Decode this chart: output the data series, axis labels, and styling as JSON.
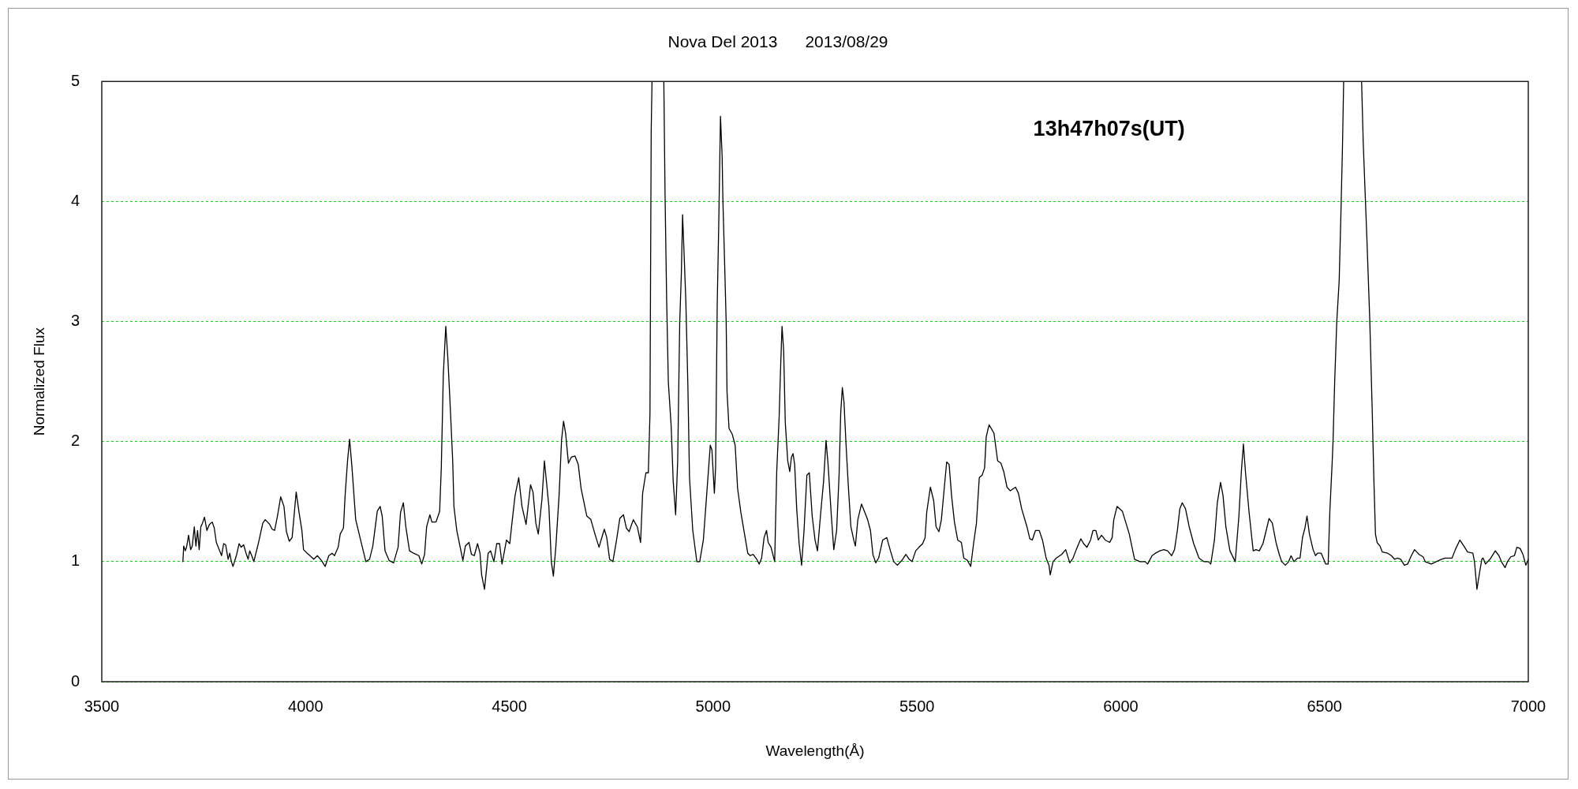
{
  "chart_data": {
    "type": "line",
    "title": "Nova Del 2013      2013/08/29",
    "xlabel": "Wavelength(Å)",
    "ylabel": "Normalized Flux",
    "annotations": [
      "13h47h07s(UT)"
    ],
    "xlim": [
      3500,
      7000
    ],
    "xticks": [
      3500,
      4000,
      4500,
      5000,
      5500,
      6000,
      6500,
      7000
    ],
    "ylim": [
      0,
      5
    ],
    "yticks": [
      0,
      1,
      2,
      3,
      4,
      5
    ],
    "grid": "y",
    "marker": "none",
    "line_style": "solid",
    "color": "#000000",
    "x": [
      3699,
      3701,
      3705,
      3708,
      3713,
      3718,
      3722,
      3727,
      3731,
      3735,
      3739,
      3743,
      3747,
      3752,
      3758,
      3764,
      3771,
      3776,
      3781,
      3794,
      3799,
      3804,
      3810,
      3814,
      3818,
      3822,
      3831,
      3837,
      3842,
      3848,
      3854,
      3859,
      3863,
      3868,
      3873,
      3884,
      3895,
      3901,
      3912,
      3918,
      3924,
      3931,
      3939,
      3947,
      3953,
      3960,
      3967,
      3977,
      3984,
      3991,
      3995,
      4004,
      4014,
      4020,
      4029,
      4039,
      4048,
      4057,
      4065,
      4071,
      4080,
      4085,
      4093,
      4097,
      4103,
      4108,
      4114,
      4123,
      4135,
      4148,
      4157,
      4165,
      4176,
      4183,
      4188,
      4195,
      4205,
      4216,
      4227,
      4233,
      4240,
      4246,
      4255,
      4265,
      4278,
      4285,
      4292,
      4297,
      4305,
      4310,
      4320,
      4329,
      4333,
      4338,
      4344,
      4349,
      4354,
      4361,
      4364,
      4371,
      4386,
      4392,
      4401,
      4407,
      4414,
      4422,
      4428,
      4432,
      4439,
      4448,
      4454,
      4462,
      4469,
      4476,
      4482,
      4493,
      4501,
      4506,
      4514,
      4523,
      4531,
      4541,
      4552,
      4558,
      4565,
      4571,
      4580,
      4586,
      4597,
      4603,
      4608,
      4614,
      4622,
      4628,
      4633,
      4638,
      4645,
      4652,
      4661,
      4669,
      4676,
      4690,
      4700,
      4710,
      4720,
      4725,
      4733,
      4739,
      4746,
      4754,
      4763,
      4771,
      4780,
      4787,
      4794,
      4804,
      4814,
      4822,
      4827,
      4835,
      4841,
      4845,
      4848,
      4850,
      4865,
      4879,
      4882,
      4886,
      4890,
      4897,
      4902,
      4908,
      4913,
      4918,
      4922,
      4925,
      4929,
      4933,
      4938,
      4942,
      4950,
      4960,
      4967,
      4976,
      4984,
      4993,
      4997,
      5003,
      5006,
      5010,
      5014,
      5018,
      5022,
      5024,
      5028,
      5032,
      5034,
      5039,
      5047,
      5054,
      5060,
      5068,
      5077,
      5085,
      5091,
      5098,
      5107,
      5113,
      5119,
      5125,
      5131,
      5135,
      5142,
      5151,
      5156,
      5162,
      5165,
      5169,
      5173,
      5177,
      5183,
      5188,
      5192,
      5196,
      5200,
      5205,
      5211,
      5217,
      5223,
      5230,
      5236,
      5243,
      5250,
      5256,
      5264,
      5271,
      5277,
      5282,
      5290,
      5296,
      5303,
      5309,
      5313,
      5317,
      5321,
      5326,
      5332,
      5338,
      5345,
      5349,
      5355,
      5364,
      5371,
      5379,
      5386,
      5392,
      5399,
      5406,
      5416,
      5426,
      5435,
      5443,
      5452,
      5463,
      5473,
      5481,
      5488,
      5497,
      5505,
      5514,
      5520,
      5524,
      5533,
      5541,
      5547,
      5554,
      5560,
      5567,
      5573,
      5579,
      5585,
      5592,
      5600,
      5609,
      5615,
      5624,
      5632,
      5639,
      5646,
      5653,
      5660,
      5666,
      5670,
      5677,
      5689,
      5698,
      5706,
      5713,
      5721,
      5729,
      5742,
      5749,
      5757,
      5770,
      5777,
      5783,
      5791,
      5800,
      5808,
      5817,
      5824,
      5827,
      5834,
      5842,
      5855,
      5865,
      5875,
      5883,
      5891,
      5902,
      5909,
      5917,
      5926,
      5932,
      5939,
      5945,
      5953,
      5962,
      5973,
      5979,
      5983,
      5991,
      6004,
      6013,
      6021,
      6034,
      6047,
      6060,
      6066,
      6077,
      6085,
      6096,
      6106,
      6115,
      6125,
      6132,
      6139,
      6145,
      6151,
      6159,
      6168,
      6179,
      6192,
      6204,
      6215,
      6221,
      6230,
      6237,
      6245,
      6251,
      6258,
      6268,
      6281,
      6290,
      6296,
      6301,
      6306,
      6315,
      6325,
      6332,
      6340,
      6349,
      6357,
      6364,
      6372,
      6381,
      6389,
      6395,
      6404,
      6412,
      6418,
      6425,
      6434,
      6440,
      6446,
      6452,
      6457,
      6463,
      6472,
      6478,
      6483,
      6492,
      6498,
      6503,
      6509,
      6513,
      6519,
      6521,
      6525,
      6530,
      6536,
      6540,
      6544,
      6547,
      6569,
      6591,
      6595,
      6604,
      6611,
      6617,
      6621,
      6625,
      6629,
      6636,
      6642,
      6655,
      6664,
      6672,
      6679,
      6687,
      6696,
      6704,
      6713,
      6721,
      6732,
      6742,
      6747,
      6762,
      6774,
      6787,
      6796,
      6813,
      6821,
      6832,
      6842,
      6851,
      6864,
      6868,
      6874,
      6881,
      6886,
      6889,
      6895,
      6906,
      6919,
      6928,
      6934,
      6943,
      6949,
      6957,
      6966,
      6972,
      6980,
      6987,
      6994,
      7000
    ],
    "values": [
      1.0,
      1.13,
      1.09,
      1.12,
      1.22,
      1.1,
      1.13,
      1.29,
      1.13,
      1.26,
      1.1,
      1.29,
      1.32,
      1.37,
      1.26,
      1.31,
      1.33,
      1.28,
      1.16,
      1.05,
      1.15,
      1.14,
      1.02,
      1.07,
      1.0,
      0.96,
      1.06,
      1.15,
      1.12,
      1.14,
      1.07,
      1.02,
      1.09,
      1.05,
      1.0,
      1.15,
      1.32,
      1.35,
      1.31,
      1.27,
      1.26,
      1.38,
      1.54,
      1.46,
      1.25,
      1.17,
      1.2,
      1.58,
      1.41,
      1.26,
      1.1,
      1.07,
      1.04,
      1.02,
      1.05,
      1.01,
      0.96,
      1.05,
      1.07,
      1.05,
      1.12,
      1.23,
      1.28,
      1.55,
      1.84,
      2.02,
      1.78,
      1.35,
      1.18,
      1.0,
      1.02,
      1.13,
      1.42,
      1.46,
      1.38,
      1.09,
      1.01,
      0.99,
      1.12,
      1.41,
      1.49,
      1.29,
      1.09,
      1.07,
      1.05,
      0.98,
      1.06,
      1.29,
      1.39,
      1.33,
      1.33,
      1.42,
      1.78,
      2.56,
      2.96,
      2.7,
      2.36,
      1.84,
      1.46,
      1.26,
      1.01,
      1.13,
      1.16,
      1.06,
      1.05,
      1.15,
      1.07,
      0.89,
      0.77,
      1.07,
      1.09,
      1.0,
      1.15,
      1.15,
      0.98,
      1.18,
      1.15,
      1.31,
      1.55,
      1.7,
      1.46,
      1.31,
      1.64,
      1.58,
      1.32,
      1.23,
      1.52,
      1.84,
      1.46,
      1.0,
      0.88,
      1.12,
      1.55,
      2.01,
      2.17,
      2.07,
      1.82,
      1.87,
      1.88,
      1.81,
      1.61,
      1.38,
      1.35,
      1.23,
      1.12,
      1.18,
      1.27,
      1.2,
      1.02,
      1.0,
      1.18,
      1.36,
      1.39,
      1.28,
      1.25,
      1.35,
      1.29,
      1.16,
      1.57,
      1.74,
      1.74,
      2.23,
      4.58,
      5,
      null,
      5,
      4.06,
      3.17,
      2.5,
      2.13,
      1.67,
      1.39,
      1.84,
      2.99,
      3.4,
      3.89,
      3.54,
      3.17,
      2.47,
      1.7,
      1.26,
      1.0,
      1.0,
      1.18,
      1.55,
      1.97,
      1.93,
      1.57,
      1.78,
      3.14,
      3.86,
      4.71,
      4.38,
      4.0,
      3.51,
      2.99,
      2.42,
      2.11,
      2.06,
      1.97,
      1.61,
      1.41,
      1.23,
      1.07,
      1.05,
      1.06,
      1.02,
      0.98,
      1.03,
      1.2,
      1.26,
      1.16,
      1.12,
      1.0,
      1.75,
      2.21,
      2.56,
      2.96,
      2.76,
      2.16,
      1.84,
      1.75,
      1.87,
      1.9,
      1.81,
      1.44,
      1.15,
      0.97,
      1.26,
      1.72,
      1.74,
      1.38,
      1.18,
      1.09,
      1.41,
      1.67,
      2.01,
      1.81,
      1.38,
      1.1,
      1.26,
      1.72,
      2.24,
      2.45,
      2.33,
      1.98,
      1.61,
      1.29,
      1.18,
      1.13,
      1.35,
      1.48,
      1.42,
      1.35,
      1.26,
      1.06,
      0.99,
      1.03,
      1.18,
      1.2,
      1.09,
      1.0,
      0.97,
      1.01,
      1.06,
      1.02,
      1.0,
      1.09,
      1.12,
      1.15,
      1.2,
      1.41,
      1.62,
      1.51,
      1.29,
      1.25,
      1.35,
      1.61,
      1.83,
      1.81,
      1.55,
      1.33,
      1.18,
      1.16,
      1.03,
      1.01,
      0.96,
      1.15,
      1.32,
      1.7,
      1.72,
      1.78,
      2.04,
      2.14,
      2.07,
      1.84,
      1.82,
      1.75,
      1.62,
      1.59,
      1.62,
      1.57,
      1.44,
      1.29,
      1.19,
      1.18,
      1.26,
      1.26,
      1.18,
      1.03,
      0.97,
      0.89,
      1.0,
      1.03,
      1.06,
      1.1,
      0.99,
      1.03,
      1.1,
      1.19,
      1.15,
      1.12,
      1.18,
      1.26,
      1.26,
      1.18,
      1.22,
      1.18,
      1.16,
      1.2,
      1.35,
      1.46,
      1.42,
      1.32,
      1.23,
      1.02,
      1.0,
      1.0,
      0.98,
      1.05,
      1.07,
      1.09,
      1.1,
      1.09,
      1.05,
      1.1,
      1.26,
      1.44,
      1.49,
      1.44,
      1.29,
      1.15,
      1.03,
      1.0,
      1.0,
      0.98,
      1.18,
      1.49,
      1.66,
      1.55,
      1.29,
      1.09,
      1.0,
      1.38,
      1.75,
      1.98,
      1.75,
      1.41,
      1.09,
      1.1,
      1.09,
      1.15,
      1.26,
      1.36,
      1.32,
      1.16,
      1.06,
      1.0,
      0.97,
      1.0,
      1.05,
      1.0,
      1.03,
      1.03,
      1.2,
      1.28,
      1.38,
      1.23,
      1.1,
      1.05,
      1.07,
      1.07,
      1.02,
      0.98,
      0.98,
      1.41,
      1.84,
      2.01,
      2.5,
      2.99,
      3.34,
      3.86,
      4.44,
      5,
      null,
      5,
      4.49,
      3.69,
      3.02,
      2.27,
      1.7,
      1.23,
      1.16,
      1.13,
      1.08,
      1.07,
      1.05,
      1.02,
      1.03,
      1.02,
      0.97,
      0.98,
      1.05,
      1.1,
      1.06,
      1.04,
      1.0,
      0.98,
      1.0,
      1.02,
      1.03,
      1.03,
      1.1,
      1.18,
      1.13,
      1.08,
      1.07,
      1.0,
      0.77,
      0.92,
      1.02,
      1.03,
      0.98,
      1.02,
      1.09,
      1.05,
      1.0,
      0.95,
      1.0,
      1.04,
      1.05,
      1.12,
      1.11,
      1.06,
      0.97,
      1.02
    ]
  }
}
